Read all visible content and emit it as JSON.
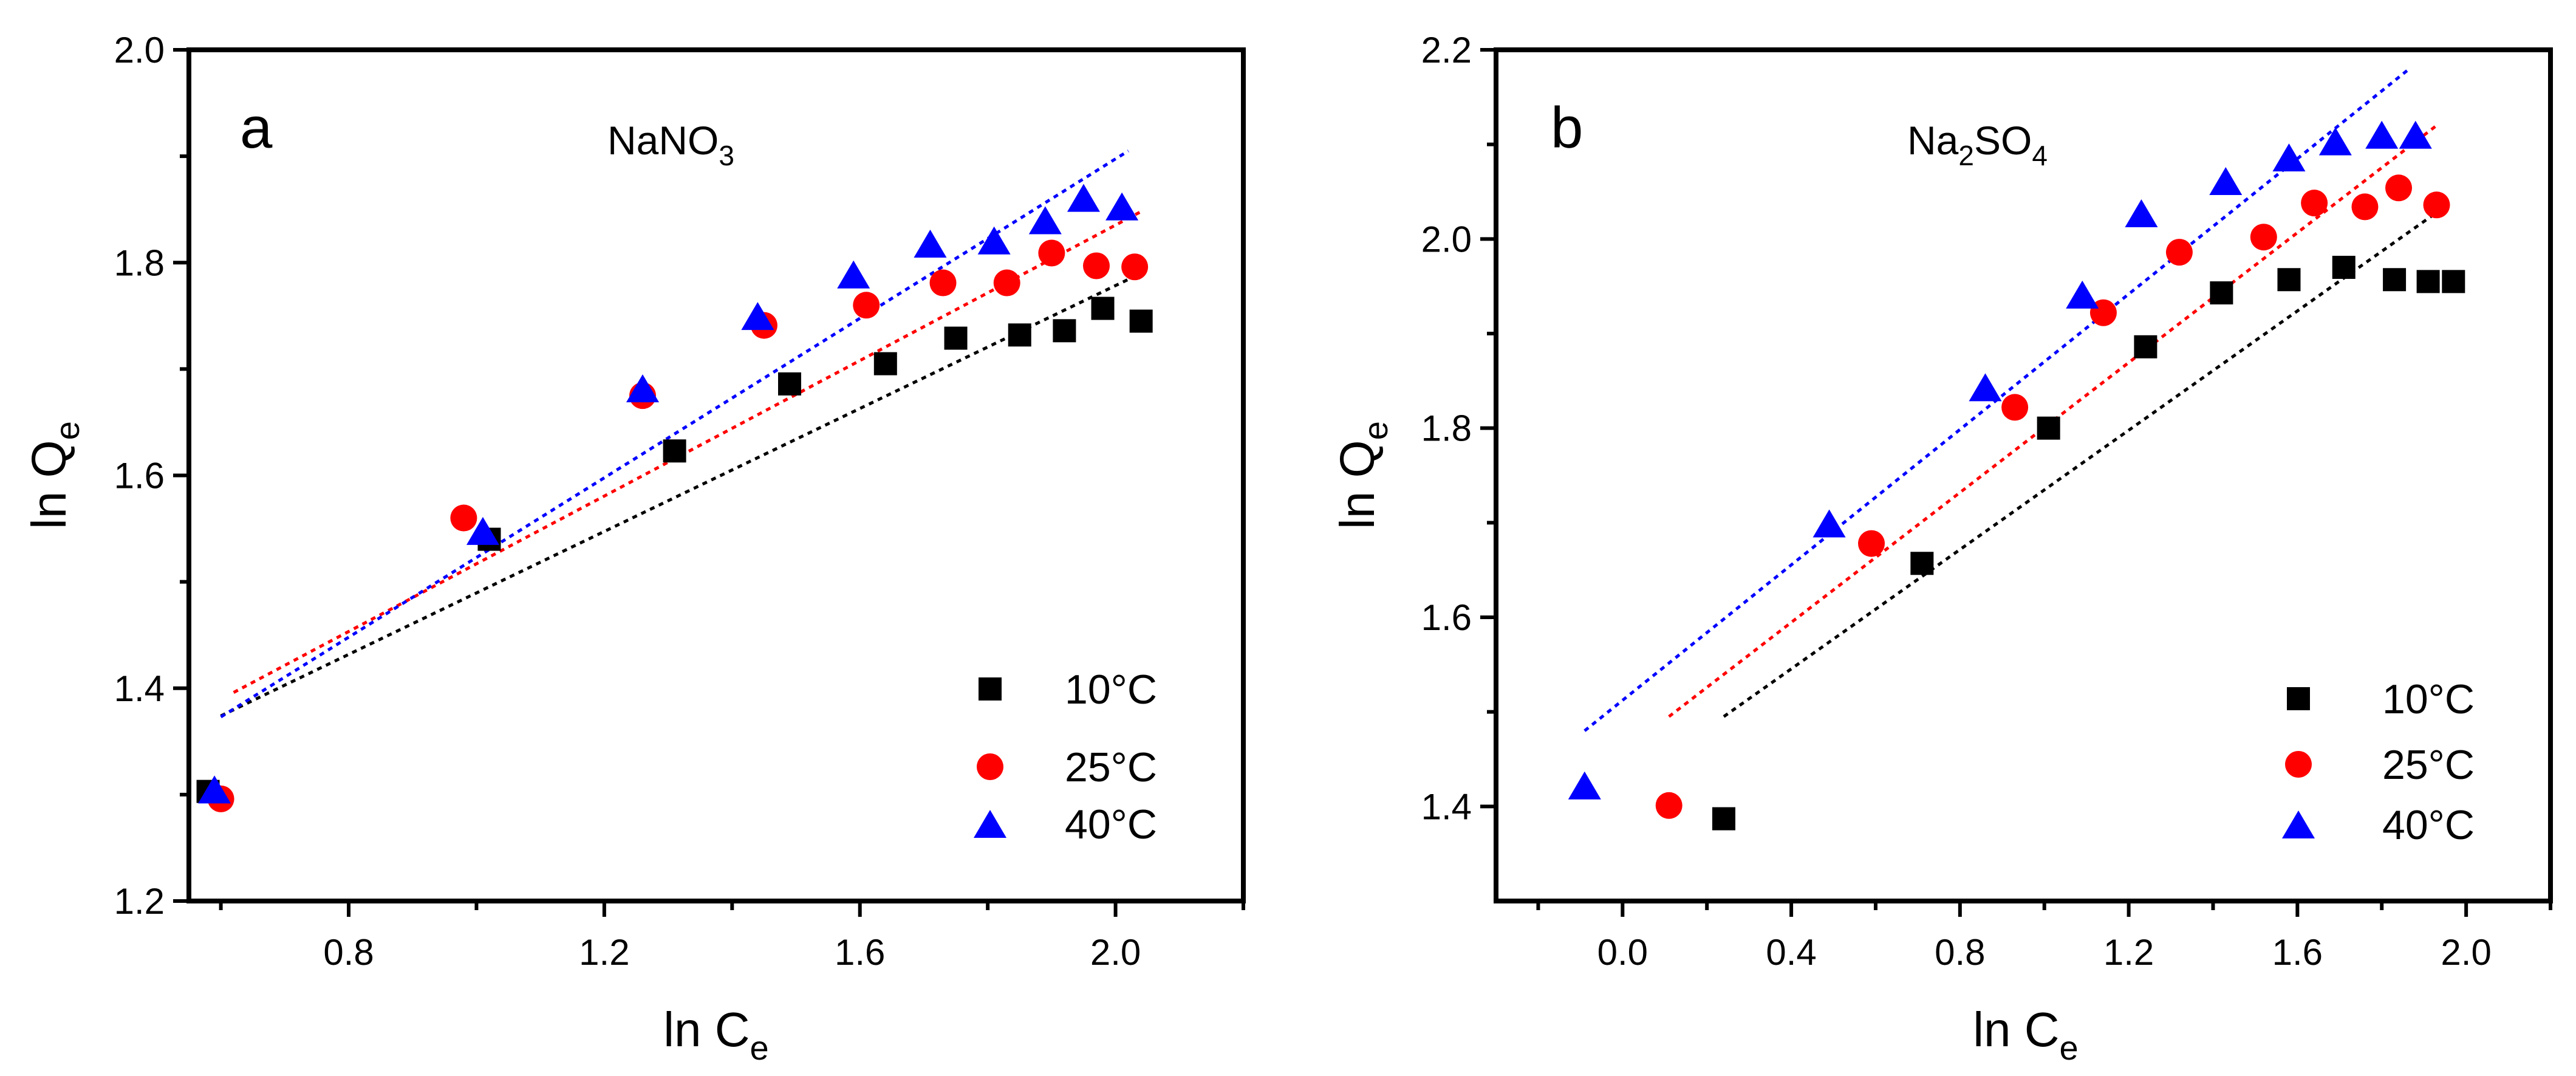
{
  "chart_data": [
    {
      "type": "scatter",
      "panel_label": "a",
      "title_parts": [
        "NaNO",
        "3",
        ""
      ],
      "xlabel_parts": [
        "ln C",
        "e"
      ],
      "ylabel_parts": [
        "ln Q",
        "e"
      ],
      "xlim": [
        0.55,
        2.2
      ],
      "ylim": [
        1.2,
        2.0
      ],
      "xticks": [
        0.8,
        1.2,
        1.6,
        2.0
      ],
      "yticks": [
        1.2,
        1.4,
        1.6,
        1.8,
        2.0
      ],
      "xtick_labels": [
        "0.8",
        "1.2",
        "1.6",
        "2.0"
      ],
      "ytick_labels": [
        "1.2",
        "1.4",
        "1.6",
        "1.8",
        "2.0"
      ],
      "grid": false,
      "legend_position": "bottom-right",
      "series": [
        {
          "name": "10°C",
          "marker": "square",
          "color": "#000000",
          "x": [
            0.58,
            1.02,
            1.31,
            1.49,
            1.64,
            1.75,
            1.85,
            1.92,
            1.98,
            2.04
          ],
          "y": [
            1.303,
            1.54,
            1.623,
            1.686,
            1.705,
            1.729,
            1.732,
            1.736,
            1.757,
            1.745
          ],
          "fit": [
            [
              0.6,
              1.374
            ],
            [
              2.04,
              1.79
            ]
          ]
        },
        {
          "name": "25°C",
          "marker": "circle",
          "color": "#ff0000",
          "x": [
            0.6,
            0.98,
            1.26,
            1.45,
            1.61,
            1.73,
            1.83,
            1.9,
            1.97,
            2.03
          ],
          "y": [
            1.296,
            1.56,
            1.675,
            1.741,
            1.76,
            1.781,
            1.781,
            1.809,
            1.797,
            1.796
          ],
          "fit": [
            [
              0.62,
              1.396
            ],
            [
              2.04,
              1.848
            ]
          ]
        },
        {
          "name": "40°C",
          "marker": "triangle",
          "color": "#0000ff",
          "x": [
            0.59,
            1.01,
            1.26,
            1.44,
            1.59,
            1.71,
            1.81,
            1.89,
            1.95,
            2.01
          ],
          "y": [
            1.302,
            1.545,
            1.679,
            1.747,
            1.786,
            1.815,
            1.818,
            1.837,
            1.858,
            1.85
          ],
          "fit": [
            [
              0.6,
              1.373
            ],
            [
              2.02,
              1.905
            ]
          ]
        }
      ]
    },
    {
      "type": "scatter",
      "panel_label": "b",
      "title_parts": [
        "Na",
        "2",
        "SO",
        "4"
      ],
      "xlabel_parts": [
        "ln C",
        "e"
      ],
      "ylabel_parts": [
        "ln Q",
        "e"
      ],
      "xlim": [
        -0.3,
        2.2
      ],
      "ylim": [
        1.3,
        2.2
      ],
      "xticks": [
        0.0,
        0.4,
        0.8,
        1.2,
        1.6,
        2.0
      ],
      "yticks": [
        1.4,
        1.6,
        1.8,
        2.0,
        2.2
      ],
      "xtick_labels": [
        "0.0",
        "0.4",
        "0.8",
        "1.2",
        "1.6",
        "2.0"
      ],
      "ytick_labels": [
        "1.4",
        "1.6",
        "1.8",
        "2.0",
        "2.2"
      ],
      "grid": false,
      "legend_position": "bottom-right",
      "series": [
        {
          "name": "10°C",
          "marker": "square",
          "color": "#000000",
          "x": [
            0.24,
            0.71,
            1.01,
            1.24,
            1.42,
            1.58,
            1.71,
            1.83,
            1.91,
            1.97
          ],
          "y": [
            1.387,
            1.657,
            1.8,
            1.886,
            1.943,
            1.957,
            1.97,
            1.957,
            1.955,
            1.955
          ],
          "fit": [
            [
              0.24,
              1.495
            ],
            [
              1.93,
              2.028
            ]
          ]
        },
        {
          "name": "25°C",
          "marker": "circle",
          "color": "#ff0000",
          "x": [
            0.11,
            0.59,
            0.93,
            1.14,
            1.32,
            1.52,
            1.64,
            1.76,
            1.84,
            1.93
          ],
          "y": [
            1.401,
            1.678,
            1.822,
            1.922,
            1.986,
            2.002,
            2.038,
            2.034,
            2.054,
            2.036
          ],
          "fit": [
            [
              0.11,
              1.495
            ],
            [
              1.93,
              2.12
            ]
          ]
        },
        {
          "name": "40°C",
          "marker": "triangle",
          "color": "#0000ff",
          "x": [
            -0.09,
            0.49,
            0.86,
            1.09,
            1.23,
            1.43,
            1.58,
            1.69,
            1.8,
            1.88
          ],
          "y": [
            1.419,
            1.696,
            1.84,
            1.938,
            2.024,
            2.058,
            2.083,
            2.1,
            2.107,
            2.107
          ],
          "fit": [
            [
              -0.09,
              1.48
            ],
            [
              1.86,
              2.178
            ]
          ]
        }
      ]
    }
  ]
}
